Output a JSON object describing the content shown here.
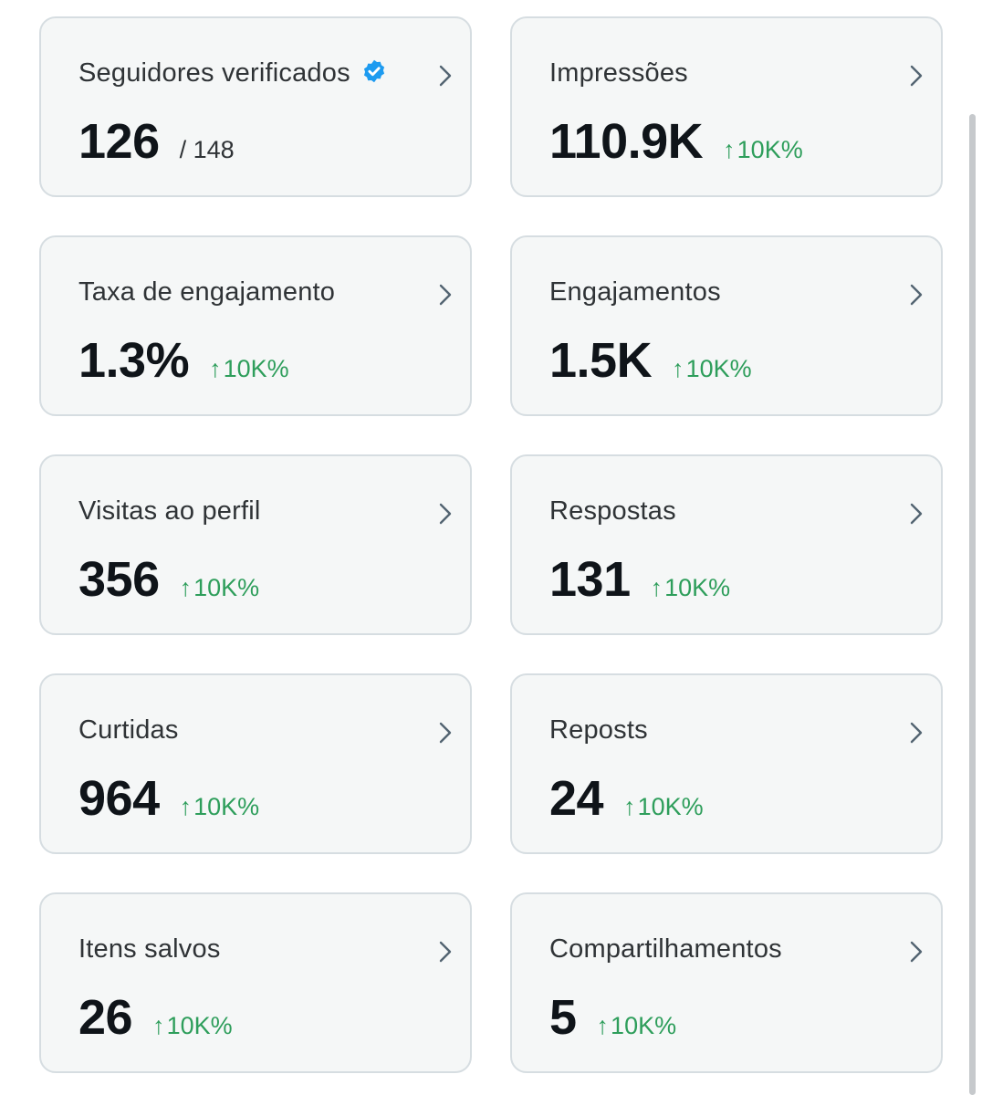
{
  "accent_color": "#1d9bf0",
  "delta_color": "#2e9e5b",
  "metrics": [
    {
      "title": "Seguidores verificados",
      "value": "126",
      "total": "/ 148",
      "verified_icon": true
    },
    {
      "title": "Impressões",
      "value": "110.9K",
      "delta_arrow": "↑",
      "delta": "10K%"
    },
    {
      "title": "Taxa de engajamento",
      "value": "1.3%",
      "delta_arrow": "↑",
      "delta": "10K%"
    },
    {
      "title": "Engajamentos",
      "value": "1.5K",
      "delta_arrow": "↑",
      "delta": "10K%"
    },
    {
      "title": "Visitas ao perfil",
      "value": "356",
      "delta_arrow": "↑",
      "delta": "10K%"
    },
    {
      "title": "Respostas",
      "value": "131",
      "delta_arrow": "↑",
      "delta": "10K%"
    },
    {
      "title": "Curtidas",
      "value": "964",
      "delta_arrow": "↑",
      "delta": "10K%"
    },
    {
      "title": "Reposts",
      "value": "24",
      "delta_arrow": "↑",
      "delta": "10K%"
    },
    {
      "title": "Itens salvos",
      "value": "26",
      "delta_arrow": "↑",
      "delta": "10K%"
    },
    {
      "title": "Compartilhamentos",
      "value": "5",
      "delta_arrow": "↑",
      "delta": "10K%"
    }
  ]
}
